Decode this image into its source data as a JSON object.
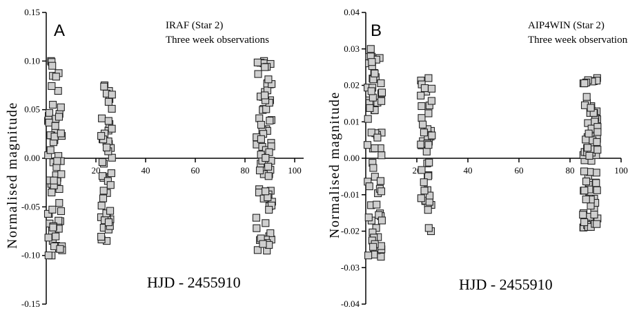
{
  "chart_data": [
    {
      "type": "scatter",
      "panel_label": "A",
      "annotation": [
        "IRAF (Star 2)",
        "Three week observations"
      ],
      "xlabel": "HJD - 2455910",
      "ylabel": "Normalised magnitude",
      "xlim": [
        0,
        100
      ],
      "ylim": [
        -0.15,
        0.15
      ],
      "xticks": [
        20,
        40,
        60,
        80,
        100
      ],
      "yticks": [
        "0.15",
        "0.10",
        "0.05",
        "0.00",
        "-0.05",
        "-0.10",
        "-0.15"
      ],
      "yticks_values": [
        0.15,
        0.1,
        0.05,
        0.0,
        -0.05,
        -0.1,
        -0.15
      ],
      "clusters": [
        {
          "x_range": [
            0.5,
            6.5
          ],
          "y_range": [
            -0.1,
            0.1
          ],
          "count": 70
        },
        {
          "x_range": [
            22.0,
            26.5
          ],
          "y_range": [
            -0.085,
            0.075
          ],
          "count": 50
        },
        {
          "x_range": [
            84.5,
            91.0
          ],
          "y_range": [
            -0.095,
            0.1
          ],
          "count": 80
        }
      ]
    },
    {
      "type": "scatter",
      "panel_label": "B",
      "annotation": [
        "AIP4WIN (Star 2)",
        "Three week observations"
      ],
      "xlabel": "HJD - 2455910",
      "ylabel": "Normalised magnitude",
      "xlim": [
        0,
        100
      ],
      "ylim": [
        -0.04,
        0.04
      ],
      "xticks": [
        20,
        40,
        60,
        80,
        100
      ],
      "yticks": [
        "0.04",
        "0.03",
        "0.02",
        "0.01",
        "0.00",
        "-0.01",
        "-0.02",
        "-0.03",
        "-0.04"
      ],
      "yticks_values": [
        0.04,
        0.03,
        0.02,
        0.01,
        0.0,
        -0.01,
        -0.02,
        -0.03,
        -0.04
      ],
      "clusters": [
        {
          "x_range": [
            0.5,
            6.5
          ],
          "y_range": [
            -0.027,
            0.03
          ],
          "count": 70
        },
        {
          "x_range": [
            21.5,
            26.0
          ],
          "y_range": [
            -0.02,
            0.022
          ],
          "count": 50
        },
        {
          "x_range": [
            85.0,
            91.0
          ],
          "y_range": [
            -0.019,
            0.022
          ],
          "count": 80
        }
      ]
    }
  ]
}
